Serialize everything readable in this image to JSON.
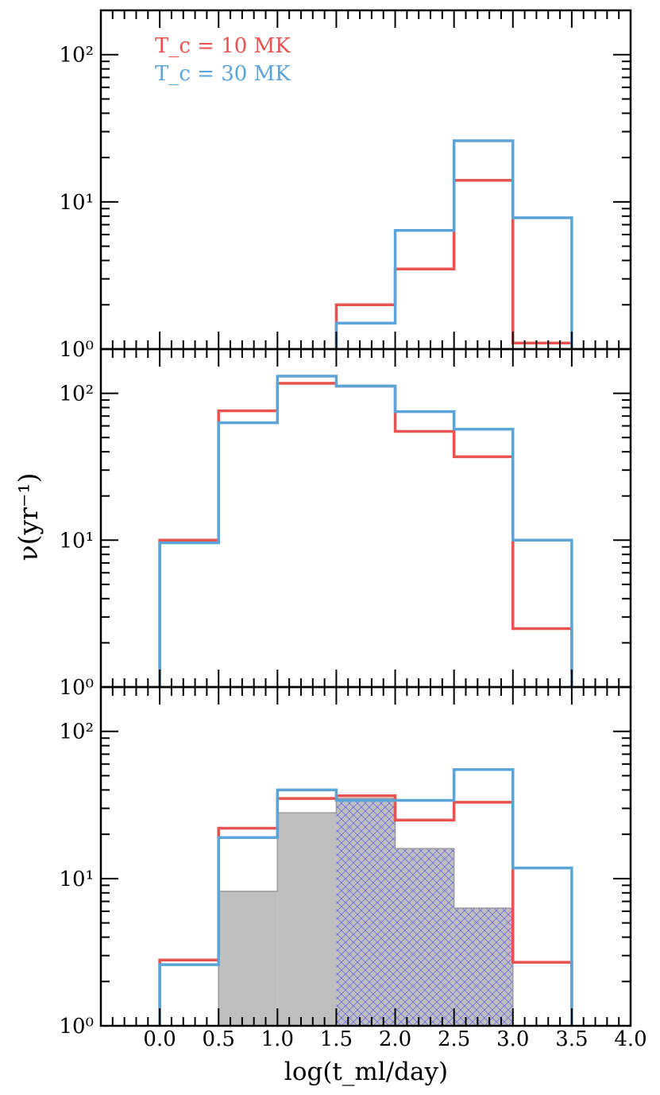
{
  "figure": {
    "ylabel": "ν(yr⁻¹)",
    "xlabel": "log(t_ml/day)",
    "legend": [
      {
        "label": "T_c = 10 MK",
        "color": "#e8524f"
      },
      {
        "label": "T_c = 30 MK",
        "color": "#5ba4d8"
      }
    ]
  },
  "chart_data": [
    {
      "type": "histogram",
      "panel": "top",
      "yscale": "log",
      "xlim": [
        -0.5,
        4.0
      ],
      "ylim": [
        1,
        200
      ],
      "x_ticks": [
        0.0,
        0.5,
        1.0,
        1.5,
        2.0,
        2.5,
        3.0,
        3.5,
        4.0
      ],
      "y_ticks": [
        "10⁰",
        "10¹",
        "10²"
      ],
      "bin_edges": [
        0.0,
        0.5,
        1.0,
        1.5,
        2.0,
        2.5,
        3.0,
        3.5
      ],
      "series": [
        {
          "name": "T_c = 10 MK",
          "color": "#e8524f",
          "values": [
            0,
            0,
            0,
            2.0,
            3.5,
            14,
            1.1
          ]
        },
        {
          "name": "T_c = 30 MK",
          "color": "#5ba4d8",
          "values": [
            0,
            0,
            0,
            1.5,
            6.4,
            26,
            7.8
          ]
        }
      ]
    },
    {
      "type": "histogram",
      "panel": "middle",
      "yscale": "log",
      "xlim": [
        -0.5,
        4.0
      ],
      "ylim": [
        1,
        200
      ],
      "y_ticks": [
        "10⁰",
        "10¹",
        "10²"
      ],
      "bin_edges": [
        0.0,
        0.5,
        1.0,
        1.5,
        2.0,
        2.5,
        3.0,
        3.5
      ],
      "series": [
        {
          "name": "T_c = 10 MK",
          "color": "#e8524f",
          "values": [
            10,
            76,
            117,
            112,
            55,
            37,
            2.5
          ]
        },
        {
          "name": "T_c = 30 MK",
          "color": "#5ba4d8",
          "values": [
            9.6,
            63,
            131,
            112,
            75,
            57,
            10
          ]
        }
      ]
    },
    {
      "type": "histogram",
      "panel": "bottom",
      "yscale": "log",
      "xlim": [
        -0.5,
        4.0
      ],
      "ylim": [
        1,
        200
      ],
      "x_ticks": [
        "0.0",
        "0.5",
        "1.0",
        "1.5",
        "2.0",
        "2.5",
        "3.0",
        "3.5",
        "4.0"
      ],
      "y_ticks": [
        "10⁰",
        "10¹",
        "10²"
      ],
      "bin_edges": [
        0.0,
        0.5,
        1.0,
        1.5,
        2.0,
        2.5,
        3.0,
        3.5
      ],
      "series": [
        {
          "name": "T_c = 10 MK",
          "color": "#e8524f",
          "values": [
            2.8,
            22,
            35,
            36.5,
            25,
            33,
            2.7
          ]
        },
        {
          "name": "T_c = 30 MK",
          "color": "#5ba4d8",
          "values": [
            2.6,
            19,
            40,
            34,
            34,
            55,
            11.8
          ]
        }
      ],
      "filled": {
        "color": "#bfbfbf",
        "values": [
          0,
          8.2,
          28,
          35,
          16,
          6.3,
          0
        ],
        "hatch_from_bin": 3,
        "hatch_color": "#4a4aff"
      }
    }
  ]
}
